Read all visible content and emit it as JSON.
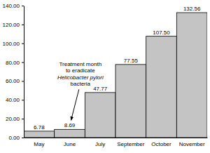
{
  "chart_data": {
    "type": "bar",
    "categories": [
      "May",
      "June",
      "July",
      "September",
      "October",
      "November"
    ],
    "values": [
      6.78,
      8.69,
      47.77,
      77.55,
      107.5,
      132.56
    ],
    "value_labels": [
      "6.78",
      "8.69",
      "47.77",
      "77.55",
      "107.50",
      "132.56"
    ],
    "data_labels": true,
    "color": "#c4c4c4",
    "ylim": [
      0,
      140
    ],
    "yticks": [
      {
        "value": 0,
        "label": "0.00"
      },
      {
        "value": 20,
        "label": "20.00"
      },
      {
        "value": 40,
        "label": "40.00"
      },
      {
        "value": 60,
        "label": "60.00"
      },
      {
        "value": 80,
        "label": "80.00"
      },
      {
        "value": 100,
        "label": "100.00"
      },
      {
        "value": 120,
        "label": "120.00"
      },
      {
        "value": 140,
        "label": "140.00"
      }
    ],
    "grid": false,
    "annotation": {
      "lines": [
        "Treatment month",
        "to eradicate",
        "Helicobacter pylori",
        "bacteria"
      ],
      "category": "June"
    }
  }
}
